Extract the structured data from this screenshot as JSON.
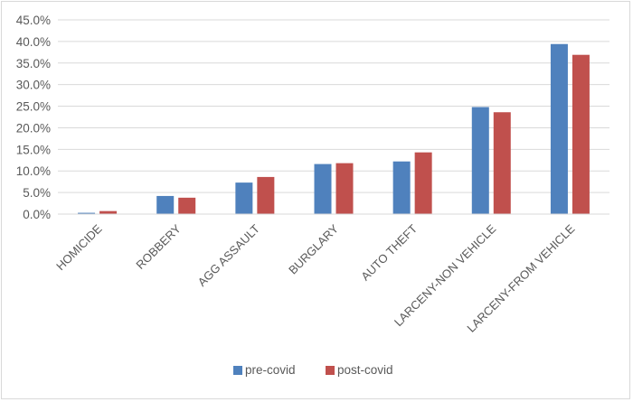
{
  "chart_data": {
    "type": "bar",
    "categories": [
      "HOMICIDE",
      "ROBBERY",
      "AGG ASSAULT",
      "BURGLARY",
      "AUTO THEFT",
      "LARCENY-NON VEHICLE",
      "LARCENY-FROM VEHICLE"
    ],
    "series": [
      {
        "name": "pre-covid",
        "color": "#4f81bd",
        "values": [
          0.3,
          4.2,
          7.3,
          11.6,
          12.2,
          24.8,
          39.4
        ]
      },
      {
        "name": "post-covid",
        "color": "#c0504d",
        "values": [
          0.7,
          3.8,
          8.6,
          11.8,
          14.3,
          23.6,
          36.9
        ]
      }
    ],
    "ylim": [
      0,
      45
    ],
    "ytick_step": 5,
    "ytick_labels": [
      "0.0%",
      "5.0%",
      "10.0%",
      "15.0%",
      "20.0%",
      "25.0%",
      "30.0%",
      "35.0%",
      "40.0%",
      "45.0%"
    ],
    "grid": true,
    "legend_position": "bottom"
  }
}
